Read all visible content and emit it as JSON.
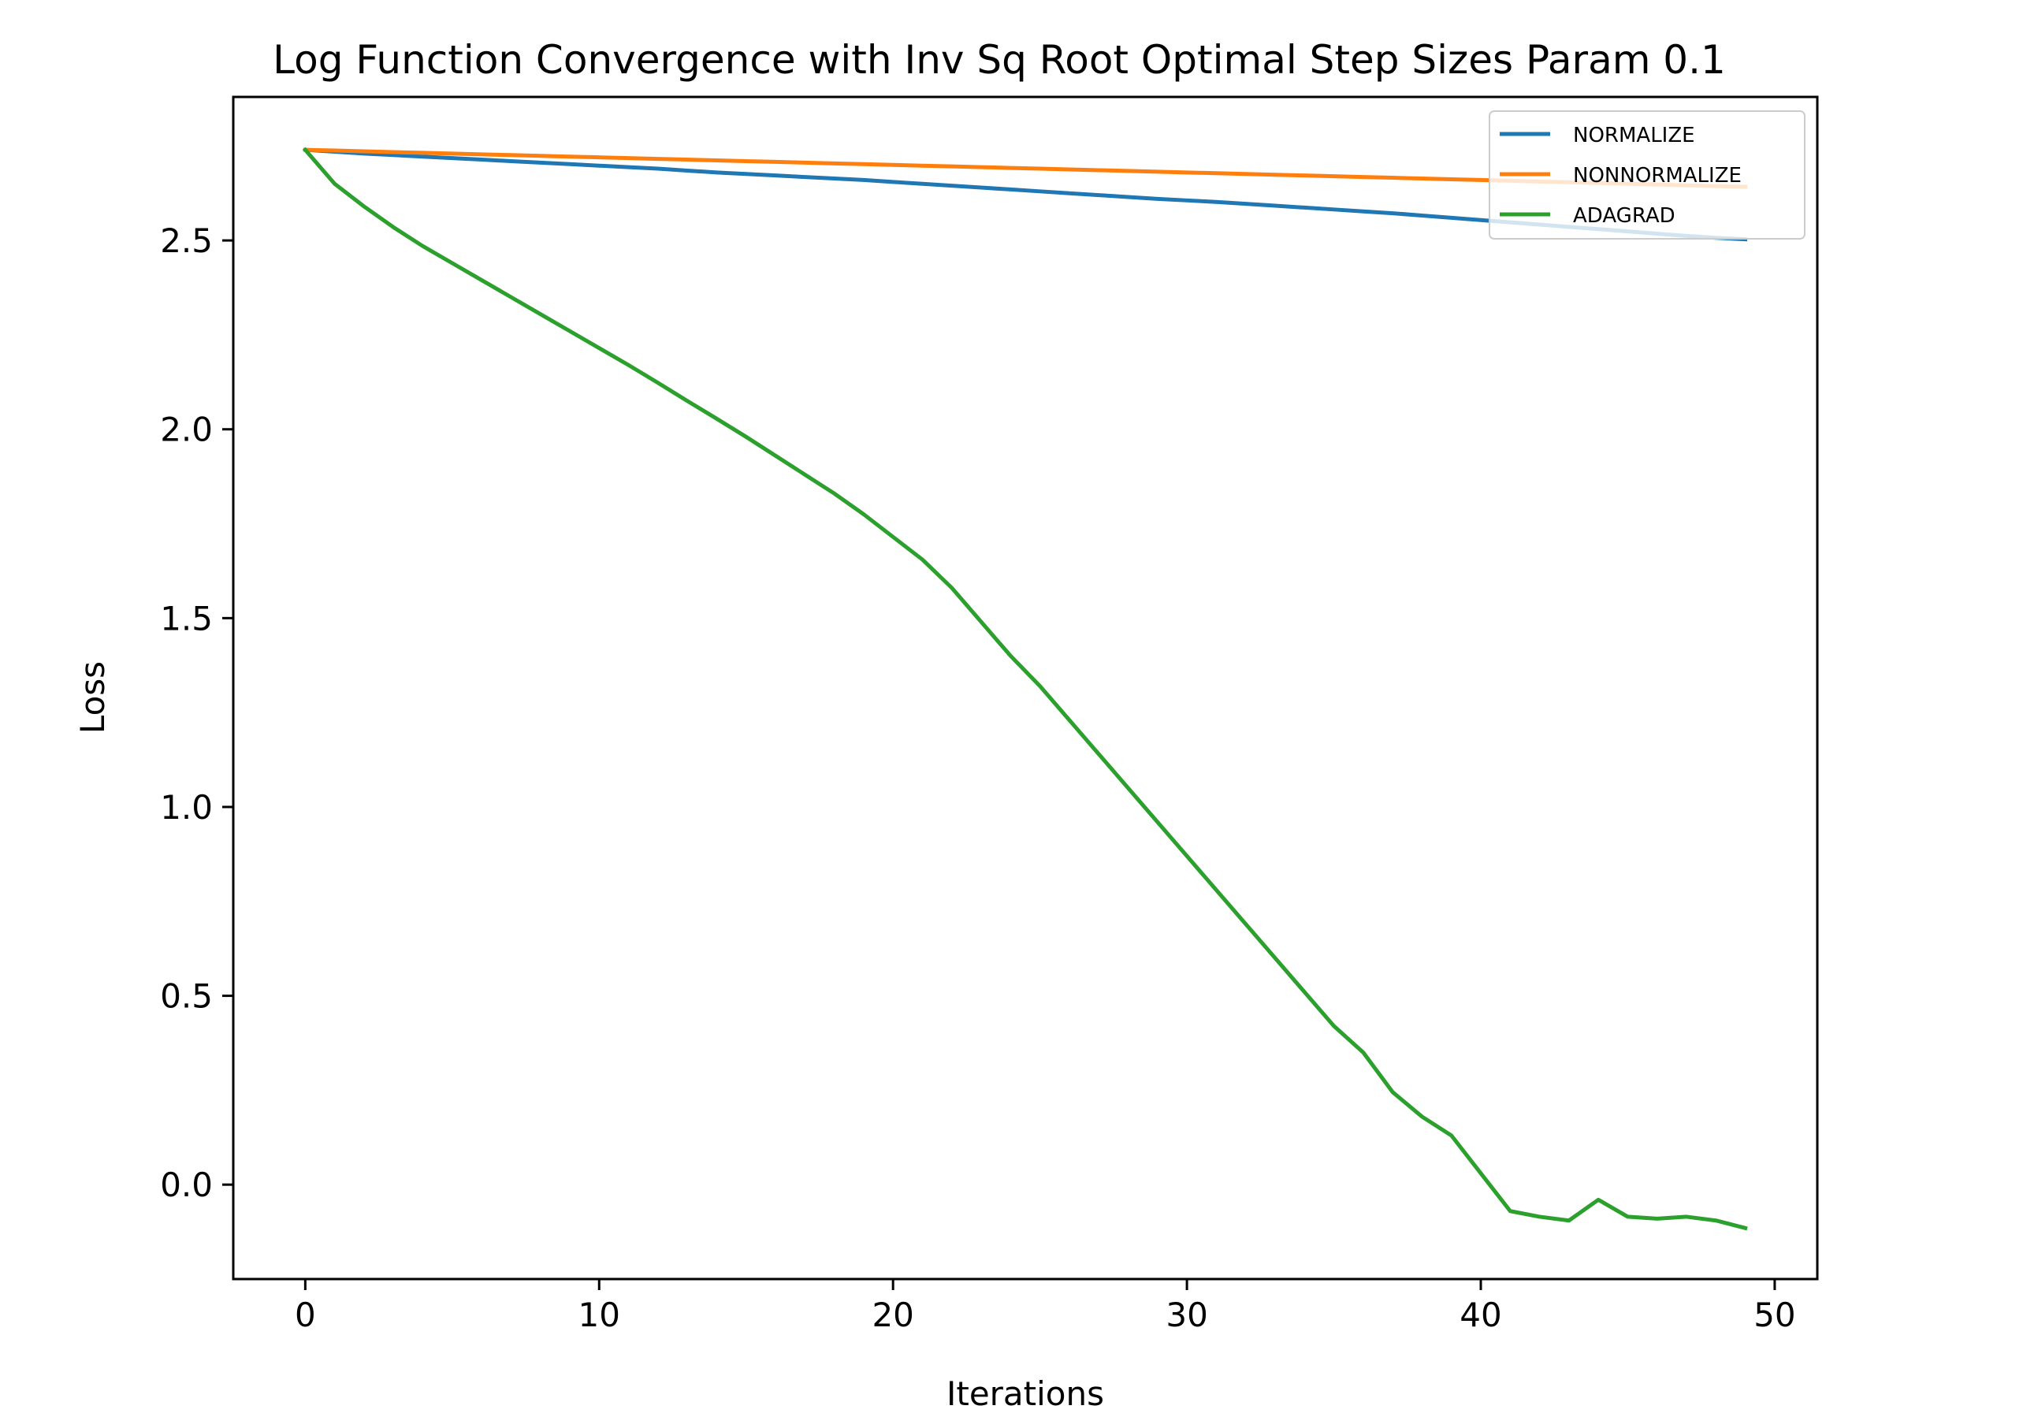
{
  "chart_data": {
    "type": "line",
    "title": "Log Function Convergence with Inv Sq Root Optimal Step Sizes Param 0.1",
    "xlabel": "Iterations",
    "ylabel": "Loss",
    "xlim": [
      -2.45,
      51.45
    ],
    "ylim": [
      -0.25,
      2.88
    ],
    "xticks": [
      0,
      10,
      20,
      30,
      40,
      50
    ],
    "xtick_labels": [
      "0",
      "10",
      "20",
      "30",
      "40",
      "50"
    ],
    "yticks": [
      0.0,
      0.5,
      1.0,
      1.5,
      2.0,
      2.5
    ],
    "ytick_labels": [
      "0.0",
      "0.5",
      "1.0",
      "1.5",
      "2.0",
      "2.5"
    ],
    "grid": false,
    "legend_position": "top-right",
    "x": [
      0,
      1,
      2,
      3,
      4,
      5,
      6,
      7,
      8,
      9,
      10,
      11,
      12,
      13,
      14,
      15,
      16,
      17,
      18,
      19,
      20,
      21,
      22,
      23,
      24,
      25,
      26,
      27,
      28,
      29,
      30,
      31,
      32,
      33,
      34,
      35,
      36,
      37,
      38,
      39,
      40,
      41,
      42,
      43,
      44,
      45,
      46,
      47,
      48,
      49
    ],
    "series": [
      {
        "name": "NORMALIZE",
        "color": "#1f77b4",
        "values": [
          2.74,
          2.735,
          2.73,
          2.726,
          2.722,
          2.718,
          2.714,
          2.71,
          2.706,
          2.702,
          2.698,
          2.694,
          2.69,
          2.685,
          2.68,
          2.676,
          2.672,
          2.668,
          2.664,
          2.66,
          2.655,
          2.65,
          2.645,
          2.64,
          2.635,
          2.63,
          2.625,
          2.62,
          2.615,
          2.61,
          2.606,
          2.602,
          2.597,
          2.592,
          2.587,
          2.582,
          2.577,
          2.572,
          2.566,
          2.56,
          2.554,
          2.548,
          2.542,
          2.536,
          2.53,
          2.524,
          2.518,
          2.512,
          2.507,
          2.503
        ]
      },
      {
        "name": "NONNORMALIZE",
        "color": "#ff7f0e",
        "values": [
          2.74,
          2.738,
          2.736,
          2.734,
          2.732,
          2.73,
          2.728,
          2.726,
          2.724,
          2.722,
          2.72,
          2.718,
          2.716,
          2.714,
          2.712,
          2.71,
          2.708,
          2.706,
          2.704,
          2.702,
          2.7,
          2.698,
          2.696,
          2.694,
          2.692,
          2.69,
          2.688,
          2.686,
          2.684,
          2.682,
          2.68,
          2.678,
          2.676,
          2.674,
          2.672,
          2.67,
          2.668,
          2.666,
          2.664,
          2.662,
          2.66,
          2.658,
          2.656,
          2.654,
          2.652,
          2.65,
          2.648,
          2.646,
          2.644,
          2.642
        ]
      },
      {
        "name": "ADAGRAD",
        "color": "#2ca02c",
        "values": [
          2.74,
          2.65,
          2.59,
          2.535,
          2.485,
          2.44,
          2.395,
          2.35,
          2.305,
          2.26,
          2.215,
          2.17,
          2.123,
          2.075,
          2.028,
          1.98,
          1.93,
          1.88,
          1.83,
          1.775,
          1.715,
          1.655,
          1.58,
          1.49,
          1.4,
          1.32,
          1.23,
          1.14,
          1.05,
          0.96,
          0.87,
          0.78,
          0.69,
          0.6,
          0.51,
          0.42,
          0.35,
          0.245,
          0.18,
          0.13,
          0.03,
          -0.07,
          -0.085,
          -0.095,
          -0.04,
          -0.085,
          -0.09,
          -0.085,
          -0.095,
          -0.115
        ]
      }
    ]
  }
}
